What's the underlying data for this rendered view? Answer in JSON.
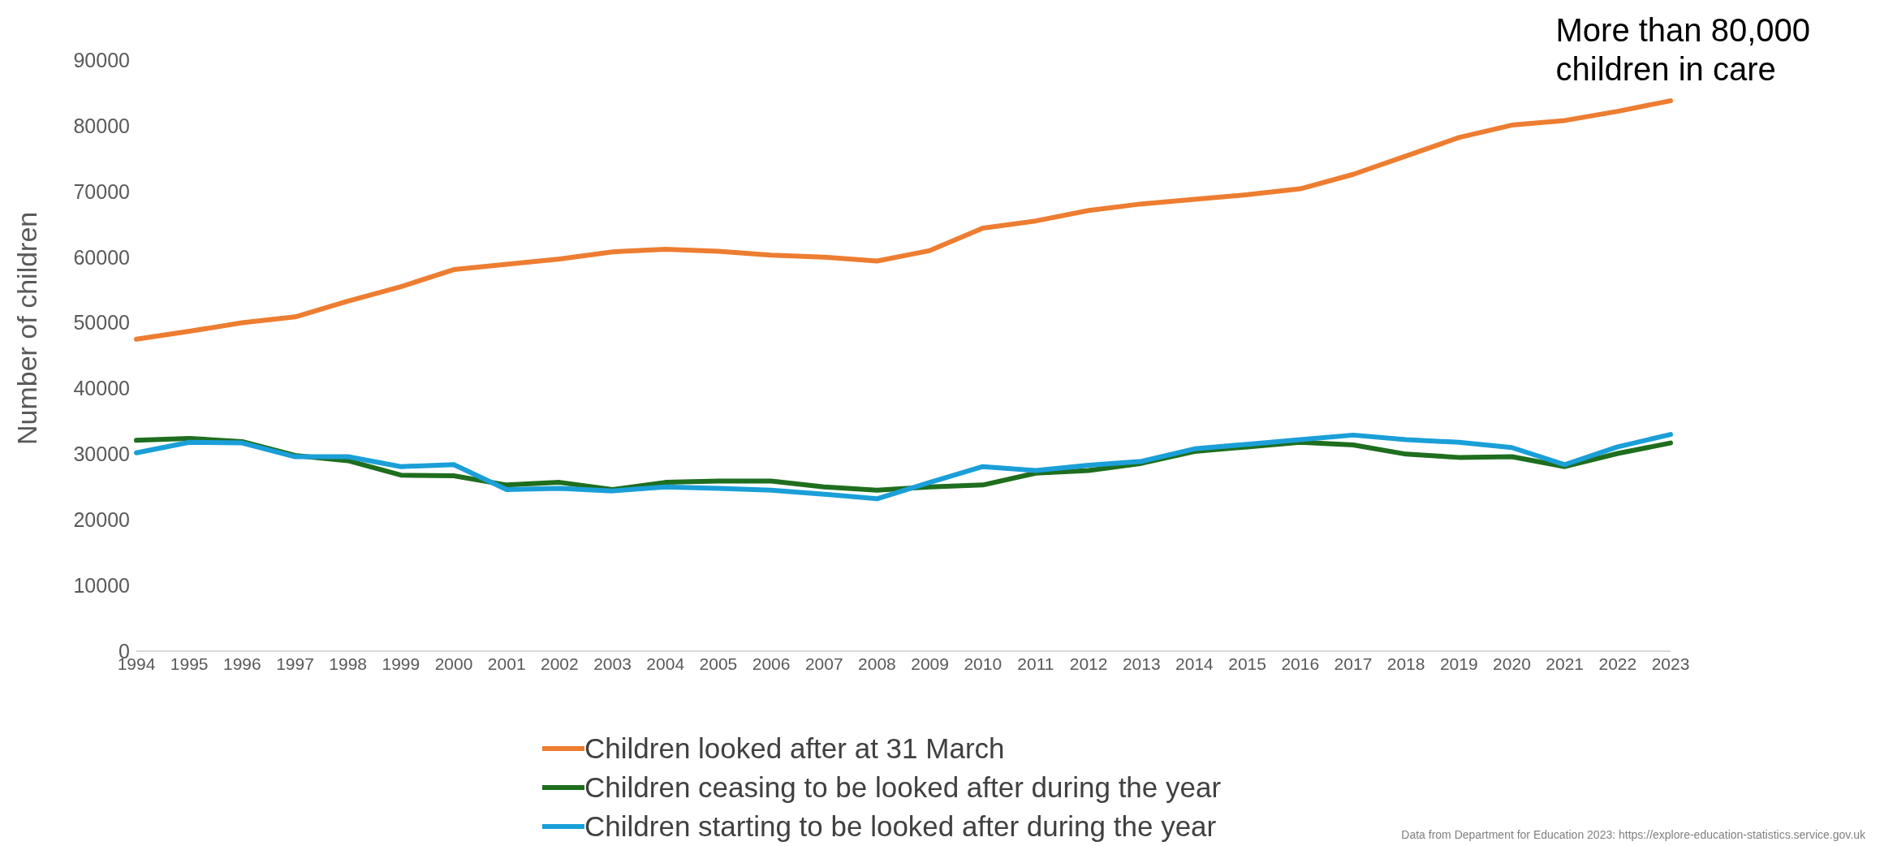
{
  "chart_data": {
    "type": "line",
    "ylabel": "Number of children",
    "categories": [
      "1994",
      "1995",
      "1996",
      "1997",
      "1998",
      "1999",
      "2000",
      "2001",
      "2002",
      "2003",
      "2004",
      "2005",
      "2006",
      "2007",
      "2008",
      "2009",
      "2010",
      "2011",
      "2012",
      "2013",
      "2014",
      "2015",
      "2016",
      "2017",
      "2018",
      "2019",
      "2020",
      "2021",
      "2022",
      "2023"
    ],
    "series": [
      {
        "name": "Children looked after at 31 March",
        "color": "#ed7d31",
        "values": [
          47500,
          48700,
          50000,
          50900,
          53300,
          55500,
          58100,
          58900,
          59700,
          60800,
          61200,
          60900,
          60300,
          60000,
          59400,
          61000,
          64400,
          65500,
          67100,
          68100,
          68800,
          69500,
          70400,
          72600,
          75400,
          78200,
          80100,
          80800,
          82200,
          83800
        ]
      },
      {
        "name": "Children ceasing to be looked after during the year",
        "color": "#1e6e1e",
        "values": [
          32100,
          32400,
          31900,
          29800,
          29000,
          26800,
          26700,
          25300,
          25700,
          24600,
          25700,
          25900,
          25900,
          25000,
          24500,
          25000,
          25300,
          27100,
          27500,
          28600,
          30400,
          31100,
          31800,
          31400,
          30000,
          29500,
          29600,
          28100,
          30100,
          31700
        ]
      },
      {
        "name": "Children starting to be looked after during the year",
        "color": "#1a9fd8",
        "values": [
          30200,
          31800,
          31700,
          29600,
          29600,
          28100,
          28400,
          24600,
          24800,
          24400,
          25000,
          24800,
          24500,
          23900,
          23200,
          25700,
          28100,
          27500,
          28300,
          28900,
          30800,
          31500,
          32200,
          32900,
          32200,
          31800,
          31000,
          28400,
          31100,
          33000
        ]
      }
    ],
    "ylim": [
      0,
      90000
    ],
    "yticks": [
      0,
      10000,
      20000,
      30000,
      40000,
      50000,
      60000,
      70000,
      80000,
      90000
    ],
    "grid": false,
    "legend": "bottom",
    "marker": "none",
    "line_style": "solid",
    "annotations": [
      {
        "text": "More than 80,000 children in care",
        "x": "2023",
        "y": 83800
      },
      "Data from Department for Education 2023: https://explore-education-statistics.service.gov.uk"
    ]
  }
}
